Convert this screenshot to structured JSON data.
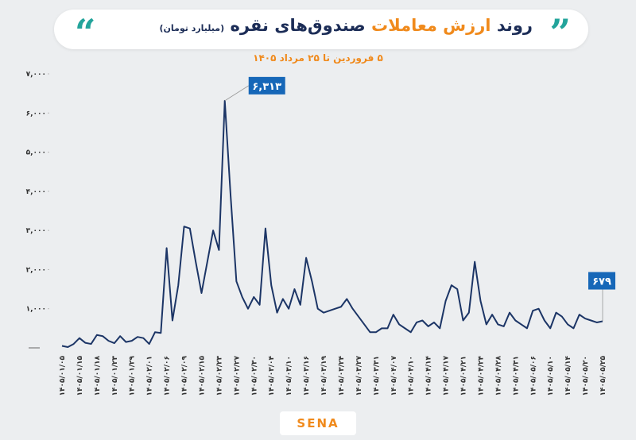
{
  "chart_data": {
    "type": "line",
    "title_parts": [
      "روند",
      "ارزش معاملات",
      "صندوق‌های نقره"
    ],
    "unit": "(میلیارد تومان)",
    "subtitle": "۵ فروردین تا ۲۵ مرداد ۱۴۰۵",
    "logo": "SENA",
    "color": "#1c3566",
    "ylim": [
      0,
      7000
    ],
    "yticks": [
      {
        "value": 1000,
        "label": "۱,۰۰۰"
      },
      {
        "value": 2000,
        "label": "۲,۰۰۰"
      },
      {
        "value": 3000,
        "label": "۳,۰۰۰"
      },
      {
        "value": 4000,
        "label": "۴,۰۰۰"
      },
      {
        "value": 5000,
        "label": "۵,۰۰۰"
      },
      {
        "value": 6000,
        "label": "۶,۰۰۰"
      },
      {
        "value": 7000,
        "label": "۷,۰۰۰"
      }
    ],
    "categories": [
      "۱۴۰۵/۰۱/۰۵",
      null,
      null,
      "۱۴۰۵/۰۱/۱۵",
      null,
      null,
      "۱۴۰۵/۰۱/۱۸",
      null,
      null,
      "۱۴۰۵/۰۱/۲۳",
      null,
      null,
      "۱۴۰۵/۰۱/۲۹",
      null,
      null,
      "۱۴۰۵/۰۲/۰۱",
      null,
      null,
      "۱۴۰۵/۰۲/۰۶",
      null,
      null,
      "۱۴۰۵/۰۲/۰۹",
      null,
      null,
      "۱۴۰۵/۰۲/۱۵",
      null,
      null,
      "۱۴۰۵/۰۲/۲۳",
      null,
      null,
      "۱۴۰۵/۰۲/۲۷",
      null,
      null,
      "۱۴۰۵/۰۲/۳۰",
      null,
      null,
      "۱۴۰۵/۰۳/۰۴",
      null,
      null,
      "۱۴۰۵/۰۳/۱۰",
      null,
      null,
      "۱۴۰۵/۰۳/۱۶",
      null,
      null,
      "۱۴۰۵/۰۳/۱۹",
      null,
      null,
      "۱۴۰۵/۰۳/۲۴",
      null,
      null,
      "۱۴۰۵/۰۳/۲۷",
      null,
      null,
      "۱۴۰۵/۰۳/۳۱",
      null,
      null,
      "۱۴۰۵/۰۴/۰۷",
      null,
      null,
      "۱۴۰۵/۰۴/۱۰",
      null,
      null,
      "۱۴۰۵/۰۴/۱۴",
      null,
      null,
      "۱۴۰۵/۰۴/۱۷",
      null,
      null,
      "۱۴۰۵/۰۴/۲۱",
      null,
      null,
      "۱۴۰۵/۰۴/۲۴",
      null,
      null,
      "۱۴۰۵/۰۴/۲۸",
      null,
      null,
      "۱۴۰۵/۰۴/۳۱",
      null,
      null,
      "۱۴۰۵/۰۵/۰۶",
      null,
      null,
      "۱۴۰۵/۰۵/۱۰",
      null,
      null,
      "۱۴۰۵/۰۵/۱۴",
      null,
      null,
      "۱۴۰۵/۰۵/۲۰",
      null,
      null,
      "۱۴۰۵/۰۵/۲۵"
    ],
    "values": [
      50,
      20,
      100,
      250,
      130,
      100,
      330,
      300,
      180,
      120,
      300,
      150,
      180,
      280,
      250,
      100,
      400,
      380,
      2550,
      700,
      1600,
      3100,
      3050,
      2200,
      1400,
      2200,
      3000,
      2500,
      6313,
      3900,
      1700,
      1300,
      1000,
      1300,
      1100,
      3050,
      1600,
      900,
      1250,
      1000,
      1500,
      1100,
      2300,
      1700,
      1000,
      900,
      950,
      1000,
      1050,
      1250,
      1000,
      800,
      600,
      400,
      400,
      500,
      500,
      850,
      600,
      500,
      400,
      650,
      700,
      550,
      650,
      500,
      1200,
      1600,
      1500,
      700,
      900,
      2200,
      1200,
      600,
      850,
      600,
      550,
      900,
      700,
      600,
      500,
      950,
      1000,
      700,
      500,
      900,
      800,
      600,
      500,
      850,
      750,
      700,
      650,
      679
    ],
    "value_labels": [
      null,
      null,
      null,
      null,
      null,
      null,
      null,
      null,
      null,
      null,
      null,
      null,
      null,
      null,
      null,
      null,
      null,
      null,
      null,
      null,
      null,
      null,
      null,
      null,
      null,
      null,
      null,
      null,
      "۶,۳۱۳",
      null,
      null,
      null,
      null,
      null,
      null,
      null,
      null,
      null,
      null,
      null,
      null,
      null,
      null,
      null,
      null,
      null,
      null,
      null,
      null,
      null,
      null,
      null,
      null,
      null,
      null,
      null,
      null,
      null,
      null,
      null,
      null,
      null,
      null,
      null,
      null,
      null,
      null,
      null,
      null,
      null,
      null,
      null,
      null,
      null,
      null,
      null,
      null,
      null,
      null,
      null,
      null,
      null,
      null,
      null,
      null,
      null,
      null,
      null,
      null,
      null,
      null,
      null,
      null,
      "۶۷۹"
    ]
  }
}
